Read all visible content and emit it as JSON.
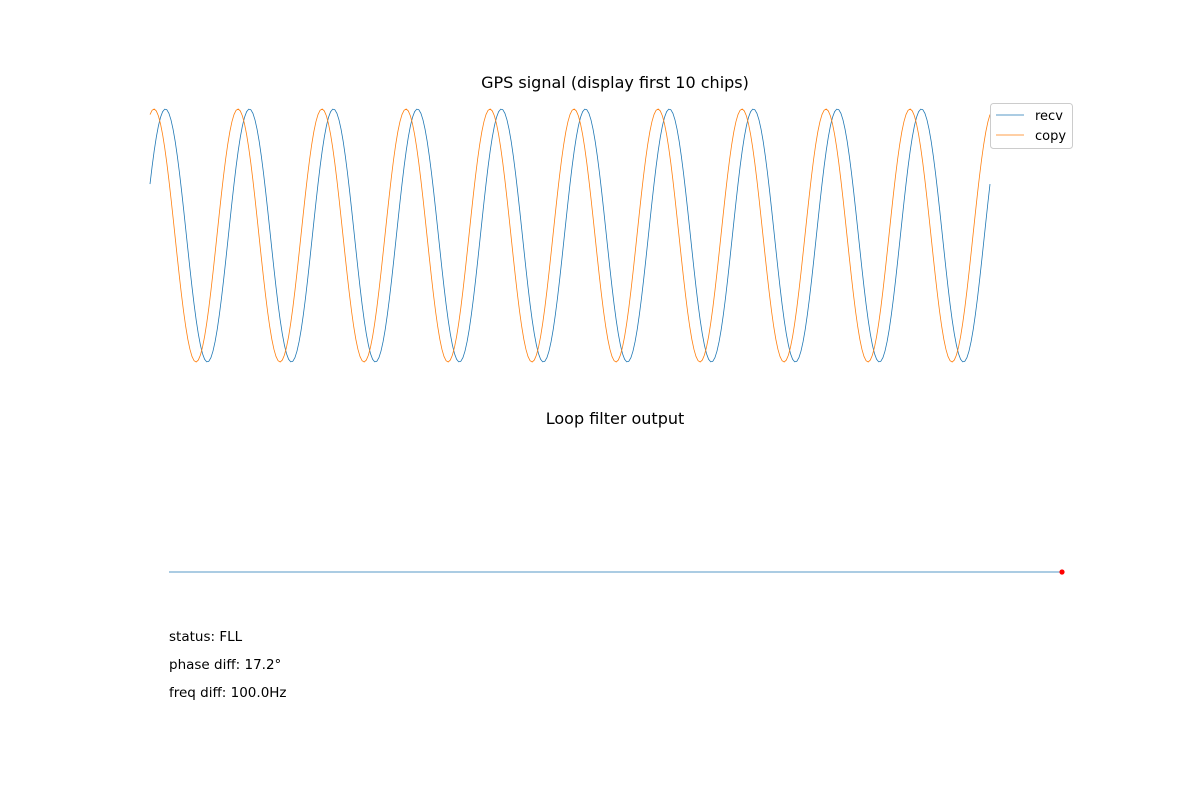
{
  "chart_data": [
    {
      "type": "line",
      "title": "GPS signal (display first 10 chips)",
      "xlabel": "",
      "ylabel": "",
      "axes_visible": false,
      "grid": false,
      "legend_position": "top-right",
      "x_unit": "chips",
      "xlim": [
        0,
        10
      ],
      "ylim": [
        -1,
        1
      ],
      "cycles_per_chip": 1,
      "series": [
        {
          "name": "recv",
          "color": "#1f77b4",
          "waveform": "cosine",
          "amplitude": 1,
          "phase_deg": -66
        },
        {
          "name": "copy",
          "color": "#ff7f0e",
          "waveform": "cosine",
          "amplitude": 1,
          "phase_deg": -17
        }
      ]
    },
    {
      "type": "line",
      "title": "Loop filter output",
      "xlabel": "",
      "ylabel": "",
      "axes_visible": false,
      "grid": false,
      "series": [
        {
          "color": "#1f77b4",
          "x": [
            0,
            1
          ],
          "y": [
            0,
            0
          ]
        }
      ],
      "marker": {
        "color": "#ff0000",
        "x": 1,
        "y": 0
      }
    }
  ],
  "status": {
    "mode": "status: FLL",
    "phase_diff": "phase diff: 17.2°",
    "freq_diff": "freq diff: 100.0Hz"
  }
}
